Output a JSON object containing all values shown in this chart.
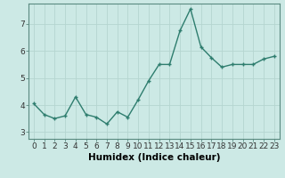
{
  "x": [
    0,
    1,
    2,
    3,
    4,
    5,
    6,
    7,
    8,
    9,
    10,
    11,
    12,
    13,
    14,
    15,
    16,
    17,
    18,
    19,
    20,
    21,
    22,
    23
  ],
  "y": [
    4.05,
    3.65,
    3.5,
    3.6,
    4.3,
    3.65,
    3.55,
    3.3,
    3.75,
    3.55,
    4.2,
    4.9,
    5.5,
    5.5,
    6.75,
    7.55,
    6.15,
    5.75,
    5.4,
    5.5,
    5.5,
    5.5,
    5.7,
    5.8
  ],
  "line_color": "#2e7d6e",
  "marker": "+",
  "marker_size": 3,
  "bg_color": "#cce9e5",
  "grid_color": "#b5d5d0",
  "xlabel": "Humidex (Indice chaleur)",
  "xlim": [
    -0.5,
    23.5
  ],
  "ylim": [
    2.75,
    7.75
  ],
  "yticks": [
    3,
    4,
    5,
    6,
    7
  ],
  "xtick_labels": [
    "0",
    "1",
    "2",
    "3",
    "4",
    "5",
    "6",
    "7",
    "8",
    "9",
    "10",
    "11",
    "12",
    "13",
    "14",
    "15",
    "16",
    "17",
    "18",
    "19",
    "20",
    "21",
    "22",
    "23"
  ],
  "xlabel_fontsize": 7.5,
  "tick_fontsize": 6.5,
  "line_width": 1.0,
  "spine_color": "#5a8a80"
}
